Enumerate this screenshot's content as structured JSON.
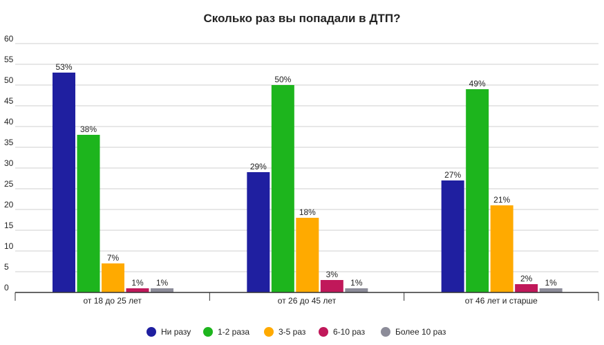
{
  "chart_data": {
    "type": "bar",
    "title": "Сколько раз вы попадали в ДТП?",
    "categories": [
      "от 18 до 25 лет",
      "от 26 до 45 лет",
      "от 46 лет и старше"
    ],
    "series": [
      {
        "name": "Ни разу",
        "color": "#1f1fa0",
        "values": [
          53,
          29,
          27
        ],
        "labels": [
          "53%",
          "29%",
          "27%"
        ]
      },
      {
        "name": "1-2 раза",
        "color": "#1db51d",
        "values": [
          38,
          50,
          49
        ],
        "labels": [
          "38%",
          "50%",
          "49%"
        ]
      },
      {
        "name": "3-5 раз",
        "color": "#ffaa00",
        "values": [
          7,
          18,
          21
        ],
        "labels": [
          "7%",
          "18%",
          "21%"
        ]
      },
      {
        "name": "6-10 раз",
        "color": "#c0185a",
        "values": [
          1,
          3,
          2
        ],
        "labels": [
          "1%",
          "3%",
          "2%"
        ]
      },
      {
        "name": "Более 10 раз",
        "color": "#8c8c99",
        "values": [
          1,
          1,
          1
        ],
        "labels": [
          "1%",
          "1%",
          "1%"
        ]
      }
    ],
    "ylim": [
      0,
      60
    ],
    "yticks": [
      0,
      5,
      10,
      15,
      20,
      25,
      30,
      35,
      40,
      45,
      50,
      55,
      60
    ],
    "grid": true,
    "legend": "bottom"
  }
}
